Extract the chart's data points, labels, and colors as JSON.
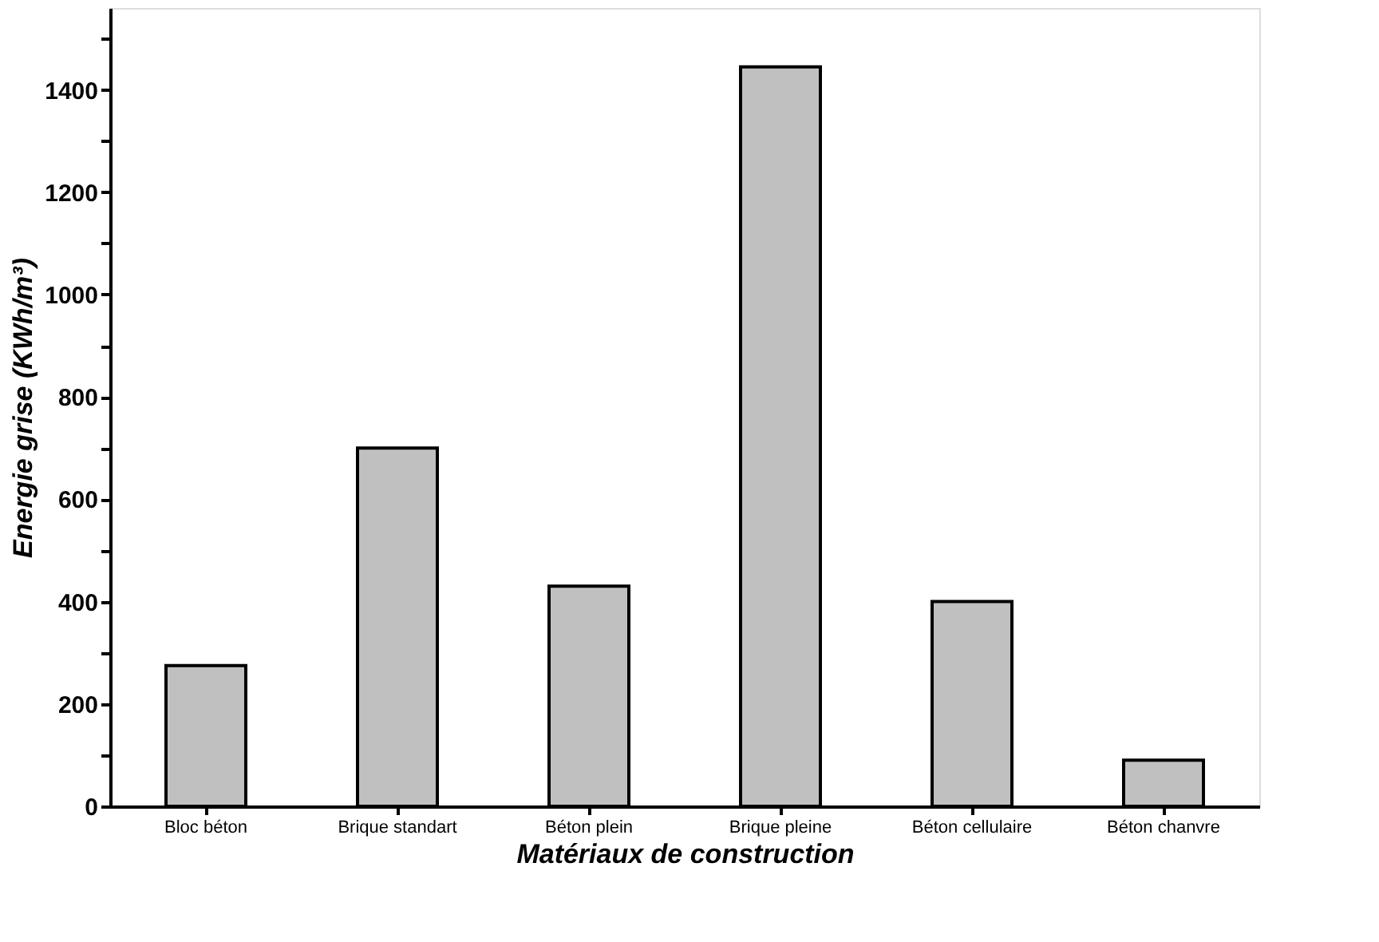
{
  "chart_data": {
    "type": "bar",
    "xlabel": "Matériaux de construction",
    "ylabel": "Energie grise (KWh/m³)",
    "categories": [
      "Bloc béton",
      "Brique standart",
      "Béton plein",
      "Brique pleine",
      "Béton cellulaire",
      "Béton chanvre"
    ],
    "values": [
      275,
      700,
      430,
      1445,
      400,
      90
    ],
    "color": "#c0c0c0",
    "ylim": [
      0,
      1560
    ],
    "yticks": [
      0,
      {
        "value": 100,
        "label": null
      },
      200,
      {
        "value": 300,
        "label": null
      },
      400,
      {
        "value": 500,
        "label": null
      },
      600,
      {
        "value": 700,
        "label": null
      },
      800,
      {
        "value": 900,
        "label": null
      },
      1000,
      {
        "value": 1100,
        "label": null
      },
      1200,
      {
        "value": 1300,
        "label": null
      },
      1400,
      {
        "value": 1500,
        "label": null
      }
    ],
    "grid": false
  }
}
